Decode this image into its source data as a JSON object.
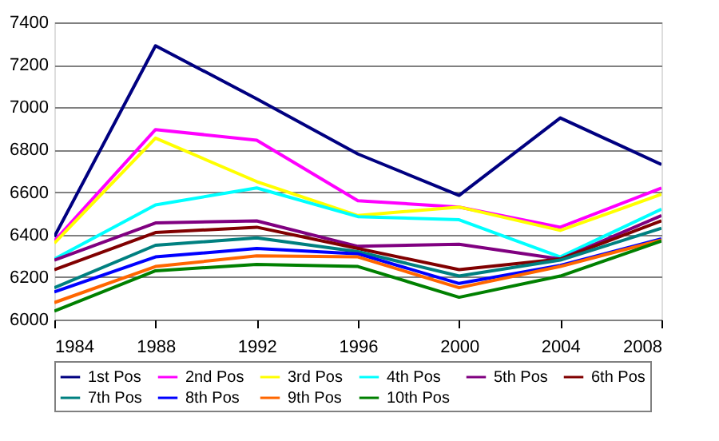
{
  "chart_data": {
    "type": "line",
    "x": [
      1984,
      1988,
      1992,
      1996,
      2000,
      2004,
      2008
    ],
    "xlim": [
      1984,
      2008
    ],
    "xticks": [
      1984,
      1988,
      1992,
      1996,
      2000,
      2004,
      2008
    ],
    "ylim": [
      6000,
      7400
    ],
    "yticks": [
      6000,
      6200,
      6400,
      6600,
      6800,
      7000,
      7200,
      7400
    ],
    "grid": "y",
    "legend": "bottom",
    "marker": "none",
    "line_style": "solid",
    "series": [
      {
        "name": "1st Pos",
        "color": "#000080",
        "values": [
          6390,
          7290,
          7040,
          6780,
          6585,
          6950,
          6730
        ]
      },
      {
        "name": "2nd Pos",
        "color": "#ff00ff",
        "values": [
          6370,
          6895,
          6845,
          6560,
          6530,
          6435,
          6620
        ]
      },
      {
        "name": "3rd Pos",
        "color": "#ffff00",
        "values": [
          6360,
          6855,
          6650,
          6490,
          6530,
          6420,
          6590
        ]
      },
      {
        "name": "4th Pos",
        "color": "#00ffff",
        "values": [
          6285,
          6540,
          6620,
          6485,
          6470,
          6295,
          6520
        ]
      },
      {
        "name": "5th Pos",
        "color": "#800080",
        "values": [
          6280,
          6455,
          6465,
          6345,
          6355,
          6285,
          6490
        ]
      },
      {
        "name": "6th Pos",
        "color": "#800000",
        "values": [
          6235,
          6410,
          6435,
          6335,
          6235,
          6285,
          6465
        ]
      },
      {
        "name": "7th Pos",
        "color": "#008080",
        "values": [
          6150,
          6350,
          6385,
          6320,
          6205,
          6280,
          6430
        ]
      },
      {
        "name": "8th Pos",
        "color": "#0000ff",
        "values": [
          6130,
          6295,
          6335,
          6310,
          6170,
          6255,
          6380
        ]
      },
      {
        "name": "9th Pos",
        "color": "#ff6600",
        "values": [
          6080,
          6250,
          6300,
          6295,
          6150,
          6250,
          6375
        ]
      },
      {
        "name": "10th Pos",
        "color": "#008000",
        "values": [
          6040,
          6230,
          6260,
          6250,
          6105,
          6205,
          6370
        ]
      }
    ]
  }
}
